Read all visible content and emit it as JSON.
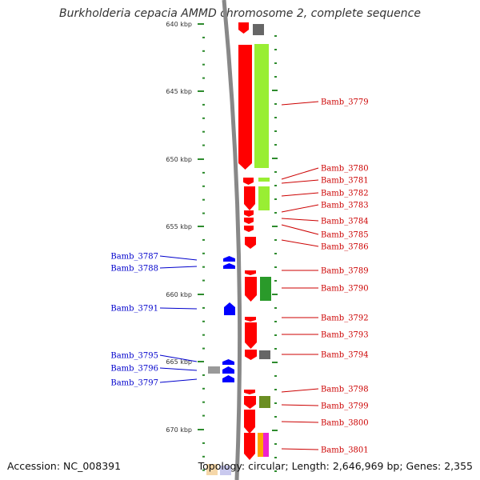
{
  "title": "Burkholderia cepacia AMMD chromosome 2, complete sequence",
  "footer": {
    "accession": "Accession: NC_008391",
    "summary": "Topology: circular; Length: 2,646,969 bp; Genes: 2,355"
  },
  "colors": {
    "forward_gene": "#ff0000",
    "reverse_gene": "#0000ff",
    "forward_label": "#cc0000",
    "reverse_label": "#0000cc",
    "backbone": "#888888",
    "scale_marks": "#2e8b2e",
    "cog_lime": "#99ee33",
    "cog_green": "#2a9a2a",
    "cog_gray": "#666666",
    "cog_olive": "#6b8e23",
    "cog_orange": "#ffa500",
    "cog_magenta": "#ee22cc"
  },
  "scale": {
    "tick_labels": [
      "640 kbp",
      "645 kbp",
      "650 kbp",
      "655 kbp",
      "660 kbp",
      "665 kbp",
      "670 kbp"
    ]
  },
  "forward_labels": [
    "Bamb_3779",
    "Bamb_3780",
    "Bamb_3781",
    "Bamb_3782",
    "Bamb_3783",
    "Bamb_3784",
    "Bamb_3785",
    "Bamb_3786",
    "Bamb_3789",
    "Bamb_3790",
    "Bamb_3792",
    "Bamb_3793",
    "Bamb_3794",
    "Bamb_3798",
    "Bamb_3799",
    "Bamb_3800",
    "Bamb_3801"
  ],
  "reverse_labels": [
    "Bamb_3787",
    "Bamb_3788",
    "Bamb_3791",
    "Bamb_3795",
    "Bamb_3796",
    "Bamb_3797"
  ]
}
